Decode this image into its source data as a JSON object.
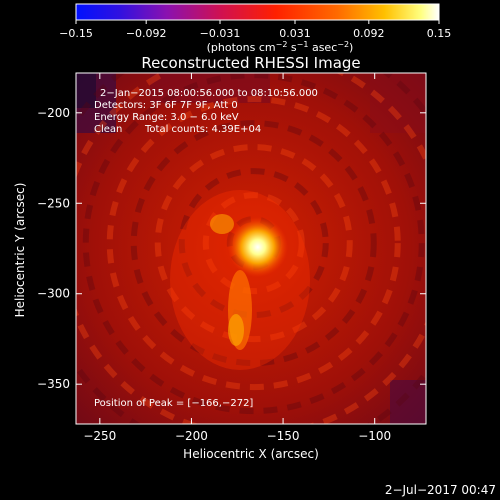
{
  "chart_data": {
    "type": "heatmap",
    "title": "Reconstructed RHESSI Image",
    "xlabel": "Heliocentric X (arcsec)",
    "ylabel": "Heliocentric Y (arcsec)",
    "xlim": [
      -263,
      -72
    ],
    "ylim": [
      -372,
      -178
    ],
    "x_ticks": [
      -250,
      -200,
      -150,
      -100
    ],
    "y_ticks": [
      -200,
      -250,
      -300,
      -350
    ],
    "x_tick_labels": [
      "−250",
      "−200",
      "−150",
      "−100"
    ],
    "y_tick_labels": [
      "−200",
      "−250",
      "−300",
      "−350"
    ],
    "colorbar": {
      "range": [
        -0.15,
        0.15
      ],
      "ticks": [
        -0.15,
        -0.092,
        -0.031,
        0.031,
        0.092,
        0.15
      ],
      "tick_labels": [
        "−0.15",
        "−0.092",
        "−0.031",
        "0.031",
        "0.092",
        "0.15"
      ],
      "unit_label": {
        "pre": "(photons cm",
        "sup1": "−2",
        "mid": " s",
        "sup2": "−1",
        "mid2": " asec",
        "sup3": "−2",
        "post": ")"
      }
    },
    "annotations": {
      "time_range": "2−Jan−2015 08:00:56.000 to 08:10:56.000",
      "detectors": "Detectors: 3F 6F 7F 9F, Att 0",
      "energy_range": "Energy Range: 3.0 − 6.0 keV",
      "method": "Clean",
      "counts": "Total counts: 4.39E+04",
      "peak": "Position of Peak = [−166,−272]"
    },
    "peak_position": [
      -166,
      -272
    ],
    "colors": {
      "low": "#1010ff",
      "mid": "#ff2000",
      "high": "#ffffff"
    }
  },
  "timestamp": "2−Jul−2017 00:47"
}
